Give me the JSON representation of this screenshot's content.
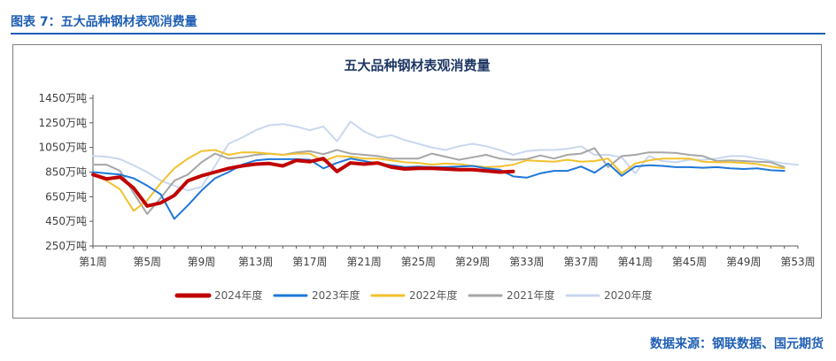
{
  "figure": {
    "caption": "图表 7：五大品种钢材表观消费量",
    "source": "数据来源：钢联数据、国元期货"
  },
  "chart_data": {
    "type": "line",
    "title": "五大品种钢材表观消费量",
    "xlabel": "",
    "ylabel": "",
    "x_labels": [
      "第1周",
      "第5周",
      "第9周",
      "第13周",
      "第17周",
      "第21周",
      "第25周",
      "第29周",
      "第33周",
      "第37周",
      "第41周",
      "第45周",
      "第49周",
      "第53周"
    ],
    "x_label_weeks": [
      1,
      5,
      9,
      13,
      17,
      21,
      25,
      29,
      33,
      37,
      41,
      45,
      49,
      53
    ],
    "xlim": [
      1,
      53
    ],
    "y_ticks": [
      250,
      450,
      650,
      850,
      1050,
      1250,
      1450
    ],
    "y_tick_labels": [
      "250万吨",
      "450万吨",
      "650万吨",
      "850万吨",
      "1050万吨",
      "1250万吨",
      "1450万吨"
    ],
    "ylim": [
      250,
      1450
    ],
    "grid": false,
    "legend_position": "bottom",
    "series": [
      {
        "name": "2024年度",
        "color": "#c00000",
        "width": 4,
        "weeks": [
          1,
          2,
          3,
          4,
          5,
          6,
          7,
          8,
          9,
          10,
          11,
          12,
          13,
          14,
          15,
          16,
          17,
          18,
          19,
          20,
          21,
          22,
          23,
          24,
          25,
          26,
          27,
          28,
          29,
          30,
          31,
          32
        ],
        "values": [
          830,
          795,
          810,
          720,
          575,
          600,
          660,
          780,
          820,
          850,
          880,
          900,
          915,
          920,
          900,
          945,
          935,
          960,
          855,
          925,
          915,
          925,
          890,
          875,
          880,
          880,
          875,
          870,
          870,
          860,
          850,
          855
        ]
      },
      {
        "name": "2023年度",
        "color": "#1f77d9",
        "width": 2,
        "weeks": [
          1,
          2,
          3,
          4,
          5,
          6,
          7,
          8,
          9,
          10,
          11,
          12,
          13,
          14,
          15,
          16,
          17,
          18,
          19,
          20,
          21,
          22,
          23,
          24,
          25,
          26,
          27,
          28,
          29,
          30,
          31,
          32,
          33,
          34,
          35,
          36,
          37,
          38,
          39,
          40,
          41,
          42,
          43,
          44,
          45,
          46,
          47,
          48,
          49,
          50,
          51,
          52
        ],
        "values": [
          850,
          840,
          830,
          800,
          740,
          670,
          470,
          580,
          700,
          800,
          850,
          910,
          945,
          955,
          955,
          955,
          950,
          880,
          925,
          960,
          940,
          920,
          905,
          890,
          895,
          890,
          890,
          895,
          900,
          880,
          870,
          815,
          805,
          840,
          860,
          860,
          895,
          845,
          920,
          820,
          895,
          905,
          900,
          890,
          890,
          885,
          890,
          880,
          875,
          880,
          865,
          860
        ]
      },
      {
        "name": "2022年度",
        "color": "#f2c12e",
        "width": 2,
        "weeks": [
          1,
          2,
          3,
          4,
          5,
          6,
          7,
          8,
          9,
          10,
          11,
          12,
          13,
          14,
          15,
          16,
          17,
          18,
          19,
          20,
          21,
          22,
          23,
          24,
          25,
          26,
          27,
          28,
          29,
          30,
          31,
          32,
          33,
          34,
          35,
          36,
          37,
          38,
          39,
          40,
          41,
          42,
          43,
          44,
          45,
          46,
          47,
          48,
          49,
          50,
          51,
          52
        ],
        "values": [
          830,
          780,
          710,
          535,
          620,
          760,
          880,
          960,
          1020,
          1030,
          990,
          1010,
          1010,
          1000,
          990,
          1000,
          1000,
          940,
          980,
          975,
          960,
          960,
          945,
          930,
          925,
          910,
          920,
          915,
          900,
          890,
          895,
          910,
          945,
          940,
          935,
          950,
          935,
          940,
          960,
          840,
          920,
          945,
          960,
          960,
          960,
          935,
          930,
          930,
          925,
          915,
          895,
          880
        ]
      },
      {
        "name": "2021年度",
        "color": "#a6a6a6",
        "width": 2,
        "weeks": [
          1,
          2,
          3,
          4,
          5,
          6,
          7,
          8,
          9,
          10,
          11,
          12,
          13,
          14,
          15,
          16,
          17,
          18,
          19,
          20,
          21,
          22,
          23,
          24,
          25,
          26,
          27,
          28,
          29,
          30,
          31,
          32,
          33,
          34,
          35,
          36,
          37,
          38,
          39,
          40,
          41,
          42,
          43,
          44,
          45,
          46,
          47,
          48,
          49,
          50,
          51,
          52
        ],
        "values": [
          910,
          910,
          860,
          680,
          510,
          640,
          780,
          830,
          930,
          1000,
          960,
          970,
          990,
          1000,
          990,
          1010,
          1020,
          995,
          1030,
          1000,
          990,
          980,
          960,
          960,
          960,
          1000,
          975,
          950,
          970,
          990,
          960,
          950,
          955,
          985,
          960,
          990,
          1000,
          1045,
          890,
          980,
          990,
          1010,
          1010,
          1005,
          990,
          980,
          940,
          945,
          940,
          935,
          930,
          890
        ]
      },
      {
        "name": "2020年度",
        "color": "#c9d7ef",
        "width": 2,
        "weeks": [
          1,
          2,
          3,
          4,
          5,
          6,
          7,
          8,
          9,
          10,
          11,
          12,
          13,
          14,
          15,
          16,
          17,
          18,
          19,
          20,
          21,
          22,
          23,
          24,
          25,
          26,
          27,
          28,
          29,
          30,
          31,
          32,
          33,
          34,
          35,
          36,
          37,
          38,
          39,
          40,
          41,
          42,
          43,
          44,
          45,
          46,
          47,
          48,
          49,
          50,
          51,
          52,
          53
        ],
        "values": [
          980,
          975,
          955,
          905,
          850,
          780,
          740,
          700,
          730,
          900,
          1080,
          1130,
          1190,
          1230,
          1240,
          1220,
          1190,
          1220,
          1100,
          1260,
          1180,
          1130,
          1150,
          1110,
          1080,
          1050,
          1030,
          1060,
          1080,
          1060,
          1030,
          990,
          1020,
          1030,
          1030,
          1040,
          1060,
          990,
          990,
          970,
          840,
          980,
          940,
          930,
          950,
          950,
          960,
          980,
          980,
          960,
          940,
          920,
          910
        ]
      }
    ]
  }
}
